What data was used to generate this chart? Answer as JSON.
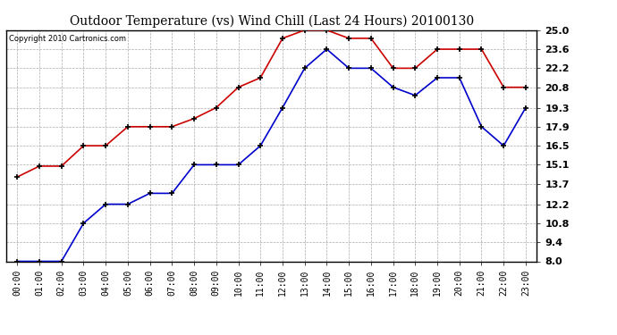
{
  "title": "Outdoor Temperature (vs) Wind Chill (Last 24 Hours) 20100130",
  "copyright": "Copyright 2010 Cartronics.com",
  "x_labels": [
    "00:00",
    "01:00",
    "02:00",
    "03:00",
    "04:00",
    "05:00",
    "06:00",
    "07:00",
    "08:00",
    "09:00",
    "10:00",
    "11:00",
    "12:00",
    "13:00",
    "14:00",
    "15:00",
    "16:00",
    "17:00",
    "18:00",
    "19:00",
    "20:00",
    "21:00",
    "22:00",
    "23:00"
  ],
  "red_data": [
    14.2,
    15.0,
    15.0,
    16.5,
    16.5,
    17.9,
    17.9,
    17.9,
    18.5,
    19.3,
    20.8,
    21.5,
    24.4,
    25.0,
    25.0,
    24.4,
    24.4,
    22.2,
    22.2,
    23.6,
    23.6,
    23.6,
    20.8,
    20.8
  ],
  "blue_data": [
    8.0,
    8.0,
    8.0,
    10.8,
    12.2,
    12.2,
    13.0,
    13.0,
    15.1,
    15.1,
    15.1,
    16.5,
    19.3,
    22.2,
    23.6,
    22.2,
    22.2,
    20.8,
    20.2,
    21.5,
    21.5,
    17.9,
    16.5,
    19.3
  ],
  "red_color": "#cc0000",
  "blue_color": "#0000cc",
  "marker_color": "#000000",
  "ylim": [
    8.0,
    25.0
  ],
  "yticks": [
    8.0,
    9.4,
    10.8,
    12.2,
    13.7,
    15.1,
    16.5,
    17.9,
    19.3,
    20.8,
    22.2,
    23.6,
    25.0
  ],
  "grid_color": "#aaaaaa",
  "bg_color": "#ffffff",
  "title_fontsize": 10,
  "copyright_fontsize": 6,
  "tick_fontsize": 7,
  "ytick_fontsize": 8
}
